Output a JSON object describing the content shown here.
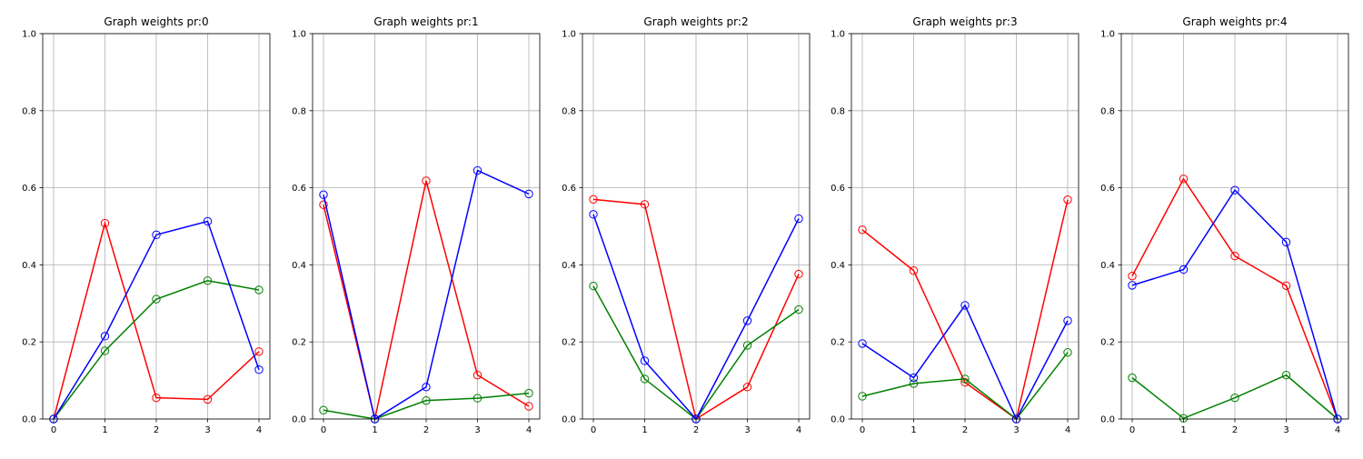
{
  "chart_data": [
    {
      "type": "line",
      "title": "Graph weights pr:0",
      "x": [
        0,
        1,
        2,
        3,
        4
      ],
      "xticks": [
        "0",
        "1",
        "2",
        "3",
        "4"
      ],
      "yticks": [
        "0.0",
        "0.2",
        "0.4",
        "0.6",
        "0.8",
        "1.0"
      ],
      "ylim": [
        0,
        1
      ],
      "grid": true,
      "series": [
        {
          "color": "#ff0000",
          "values": [
            0.0,
            0.508,
            0.055,
            0.051,
            0.175
          ]
        },
        {
          "color": "#008000",
          "values": [
            0.0,
            0.177,
            0.311,
            0.359,
            0.335
          ]
        },
        {
          "color": "#0000ff",
          "values": [
            0.0,
            0.215,
            0.478,
            0.513,
            0.128
          ]
        }
      ]
    },
    {
      "type": "line",
      "title": "Graph weights pr:1",
      "x": [
        0,
        1,
        2,
        3,
        4
      ],
      "xticks": [
        "0",
        "1",
        "2",
        "3",
        "4"
      ],
      "yticks": [
        "0.0",
        "0.2",
        "0.4",
        "0.6",
        "0.8",
        "1.0"
      ],
      "ylim": [
        0,
        1
      ],
      "grid": true,
      "series": [
        {
          "color": "#ff0000",
          "values": [
            0.556,
            0.0,
            0.618,
            0.114,
            0.033
          ]
        },
        {
          "color": "#008000",
          "values": [
            0.023,
            0.0,
            0.048,
            0.054,
            0.067
          ]
        },
        {
          "color": "#0000ff",
          "values": [
            0.582,
            0.0,
            0.083,
            0.645,
            0.584
          ]
        }
      ]
    },
    {
      "type": "line",
      "title": "Graph weights pr:2",
      "x": [
        0,
        1,
        2,
        3,
        4
      ],
      "xticks": [
        "0",
        "1",
        "2",
        "3",
        "4"
      ],
      "yticks": [
        "0.0",
        "0.2",
        "0.4",
        "0.6",
        "0.8",
        "1.0"
      ],
      "ylim": [
        0,
        1
      ],
      "grid": true,
      "series": [
        {
          "color": "#ff0000",
          "values": [
            0.57,
            0.557,
            0.0,
            0.083,
            0.376
          ]
        },
        {
          "color": "#008000",
          "values": [
            0.345,
            0.104,
            0.0,
            0.191,
            0.284
          ]
        },
        {
          "color": "#0000ff",
          "values": [
            0.531,
            0.151,
            0.0,
            0.255,
            0.52
          ]
        }
      ]
    },
    {
      "type": "line",
      "title": "Graph weights pr:3",
      "x": [
        0,
        1,
        2,
        3,
        4
      ],
      "xticks": [
        "0",
        "1",
        "2",
        "3",
        "4"
      ],
      "yticks": [
        "0.0",
        "0.2",
        "0.4",
        "0.6",
        "0.8",
        "1.0"
      ],
      "ylim": [
        0,
        1
      ],
      "grid": true,
      "series": [
        {
          "color": "#ff0000",
          "values": [
            0.491,
            0.385,
            0.095,
            0.0,
            0.569
          ]
        },
        {
          "color": "#008000",
          "values": [
            0.059,
            0.092,
            0.104,
            0.0,
            0.173
          ]
        },
        {
          "color": "#0000ff",
          "values": [
            0.196,
            0.107,
            0.295,
            0.0,
            0.255
          ]
        }
      ]
    },
    {
      "type": "line",
      "title": "Graph weights pr:4",
      "x": [
        0,
        1,
        2,
        3,
        4
      ],
      "xticks": [
        "0",
        "1",
        "2",
        "3",
        "4"
      ],
      "yticks": [
        "0.0",
        "0.2",
        "0.4",
        "0.6",
        "0.8",
        "1.0"
      ],
      "ylim": [
        0,
        1
      ],
      "grid": true,
      "series": [
        {
          "color": "#ff0000",
          "values": [
            0.371,
            0.623,
            0.423,
            0.346,
            0.0
          ]
        },
        {
          "color": "#008000",
          "values": [
            0.107,
            0.002,
            0.055,
            0.114,
            0.0
          ]
        },
        {
          "color": "#0000ff",
          "values": [
            0.347,
            0.388,
            0.594,
            0.459,
            0.0
          ]
        }
      ]
    }
  ]
}
